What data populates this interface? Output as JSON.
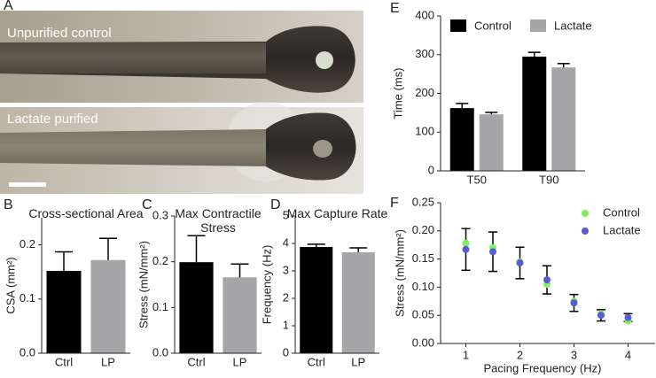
{
  "figure_a": {
    "panel": "A",
    "images": [
      {
        "label": "Unpurified control"
      },
      {
        "label": "Lactate purified"
      }
    ]
  },
  "chart_data": [
    {
      "type": "bar",
      "panel": "B",
      "title": "Cross-sectional Area",
      "y_label": "CSA (mm²)",
      "categories": [
        "Ctrl",
        "LP"
      ],
      "values": [
        0.152,
        0.172
      ],
      "errors": [
        0.035,
        0.04
      ],
      "colors": [
        "#000000",
        "#a6a6a8"
      ],
      "ylim": [
        0,
        0.25
      ],
      "yticks": [
        {
          "value": 0,
          "label": "0.0"
        },
        0.1,
        0.2
      ]
    },
    {
      "type": "bar",
      "panel": "C",
      "title": "Max Contractile Stress",
      "y_label": "Stress (mN/mm²)",
      "categories": [
        "Ctrl",
        "LP"
      ],
      "values": [
        0.199,
        0.166
      ],
      "errors": [
        0.058,
        0.029
      ],
      "colors": [
        "#000000",
        "#a6a6a8"
      ],
      "ylim": [
        0,
        0.3
      ],
      "yticks": [
        {
          "value": 0,
          "label": "0.0"
        },
        0.1,
        0.2,
        0.3
      ]
    },
    {
      "type": "bar",
      "panel": "D",
      "title": "Max Capture Rate",
      "y_label": "Frequency (Hz)",
      "categories": [
        "Ctrl",
        "LP"
      ],
      "values": [
        3.87,
        3.68
      ],
      "errors": [
        0.1,
        0.16
      ],
      "colors": [
        "#000000",
        "#a6a6a8"
      ],
      "ylim": [
        0,
        5
      ],
      "yticks": [
        0,
        1,
        2,
        3,
        4,
        5
      ]
    },
    {
      "type": "grouped-bar",
      "panel": "E",
      "y_label": "Time (ms)",
      "categories": [
        "T50",
        "T90"
      ],
      "series": [
        {
          "name": "Control",
          "color": "#000000",
          "values": [
            162,
            295
          ],
          "errors": [
            12,
            11
          ]
        },
        {
          "name": "Lactate",
          "color": "#a6a6a8",
          "values": [
            146,
            267
          ],
          "errors": [
            5,
            10
          ]
        }
      ],
      "ylim": [
        0,
        400
      ],
      "yticks": [
        0,
        100,
        200,
        300,
        400
      ],
      "legend": "top"
    },
    {
      "type": "scatter",
      "panel": "F",
      "x_label": "Pacing Frequency (Hz)",
      "y_label": "Stress (mN/mm²)",
      "x": [
        1,
        1.5,
        2,
        2.5,
        3,
        3.5,
        4
      ],
      "series": [
        {
          "name": "Control",
          "color": "#7df05a",
          "values": [
            0.178,
            0.17,
            0.145,
            0.105,
            0.075,
            0.053,
            0.04
          ]
        },
        {
          "name": "Lactate",
          "color": "#5b5bd6",
          "values": [
            0.167,
            0.163,
            0.143,
            0.113,
            0.072,
            0.05,
            0.046
          ],
          "errors": [
            0.037,
            0.035,
            0.028,
            0.025,
            0.015,
            0.01,
            0.007
          ]
        }
      ],
      "xlim": [
        0.5,
        4.5
      ],
      "xticks": [
        1,
        2,
        3,
        4
      ],
      "ylim": [
        0,
        0.25
      ],
      "yticks": [
        {
          "value": 0,
          "label": "0.00"
        },
        0.05,
        {
          "value": 0.1,
          "label": "0.10"
        },
        0.15,
        {
          "value": 0.2,
          "label": "0.20"
        },
        0.25
      ],
      "legend": "top-right"
    }
  ]
}
